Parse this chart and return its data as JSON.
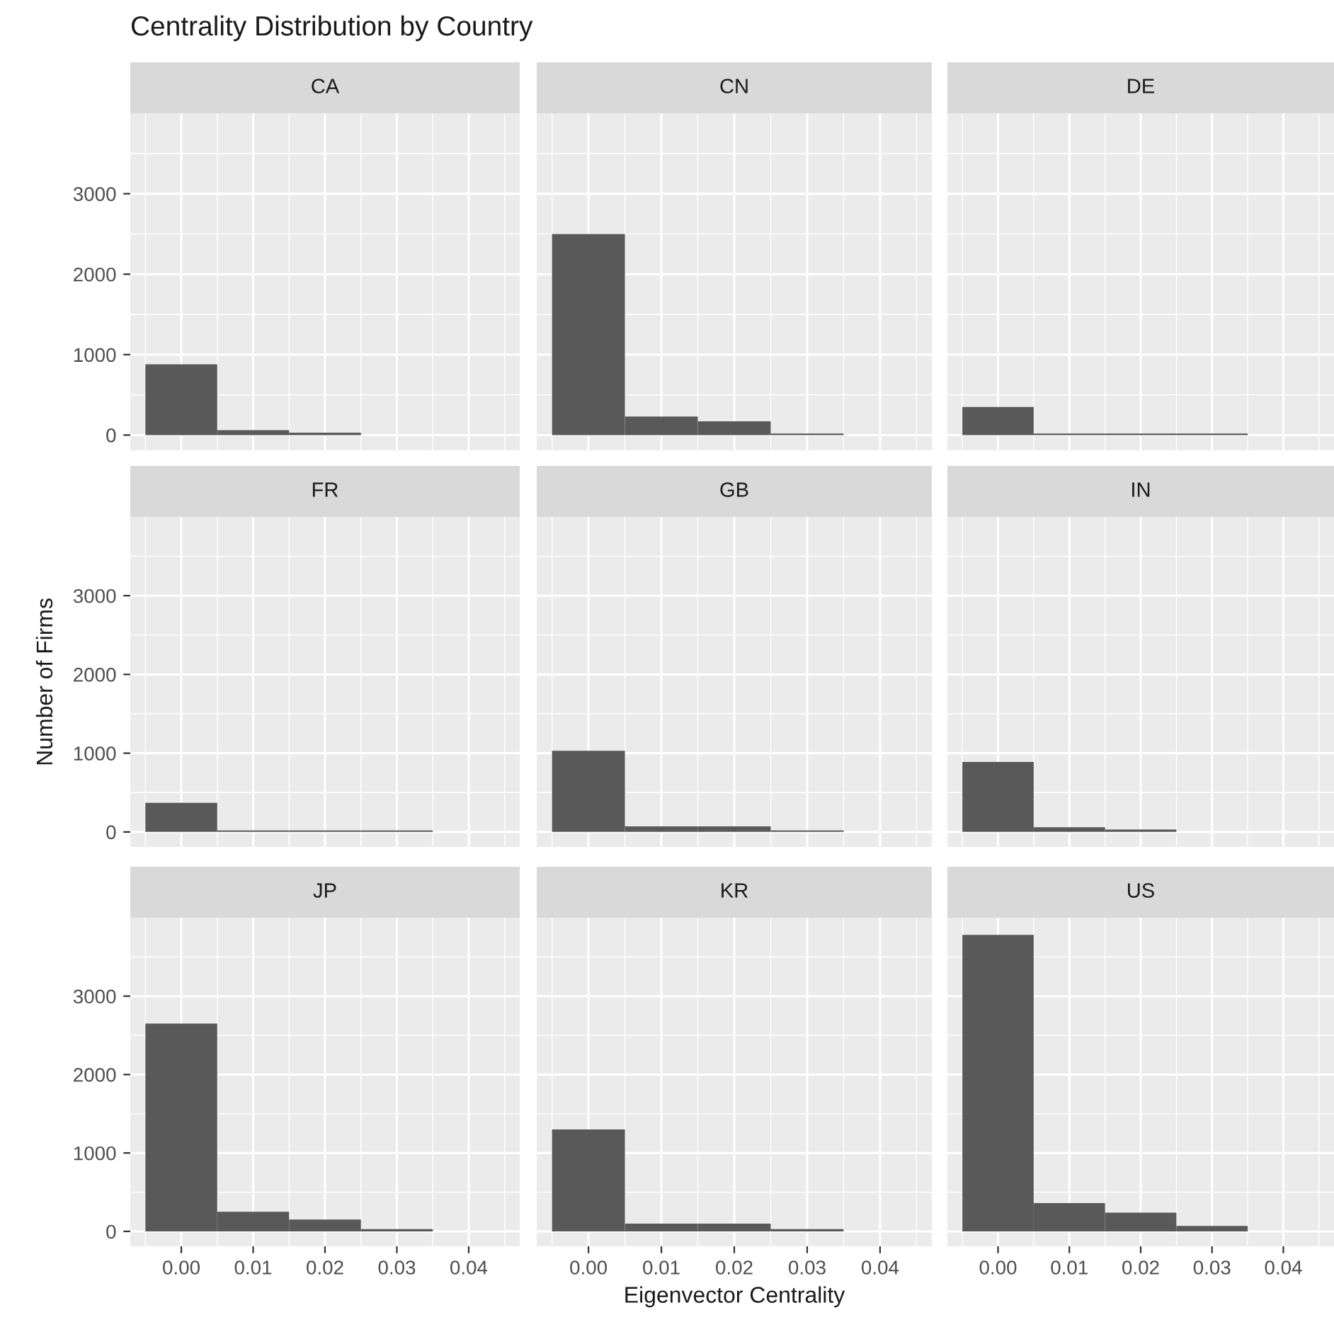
{
  "chart_data": [
    {
      "type": "histogram",
      "title": "Centrality Distribution by Country",
      "subtitle": "CA",
      "bins": [
        -0.005,
        0.005,
        0.015,
        0.025,
        0.035
      ],
      "values": [
        880,
        60,
        30,
        0
      ],
      "color": "#595959",
      "xlim": [
        -0.0071,
        0.0471
      ],
      "ylim": [
        -190,
        4000
      ],
      "xticks": [
        {
          "value": 0,
          "label": null
        },
        {
          "value": 0.01,
          "label": null
        },
        {
          "value": 0.02,
          "label": null
        },
        {
          "value": 0.03,
          "label": null
        },
        {
          "value": 0.04,
          "label": null
        }
      ],
      "yticks": [
        0,
        1000,
        2000,
        3000
      ],
      "grid": true,
      "tick_labels": "y"
    },
    {
      "type": "histogram",
      "subtitle": "CN",
      "bins": [
        -0.005,
        0.005,
        0.015,
        0.025,
        0.035
      ],
      "values": [
        2500,
        230,
        170,
        20
      ],
      "color": "#595959",
      "xlim": [
        -0.0071,
        0.0471
      ],
      "ylim": [
        -190,
        4000
      ],
      "xticks": [
        {
          "value": 0,
          "label": null
        },
        {
          "value": 0.01,
          "label": null
        },
        {
          "value": 0.02,
          "label": null
        },
        {
          "value": 0.03,
          "label": null
        },
        {
          "value": 0.04,
          "label": null
        }
      ],
      "yticks": [
        {
          "value": 0,
          "label": null
        },
        {
          "value": 1000,
          "label": null
        },
        {
          "value": 2000,
          "label": null
        },
        {
          "value": 3000,
          "label": null
        }
      ],
      "grid": true,
      "tick_labels": false
    },
    {
      "type": "histogram",
      "subtitle": "DE",
      "bins": [
        -0.005,
        0.005,
        0.015,
        0.025,
        0.035
      ],
      "values": [
        350,
        20,
        20,
        20
      ],
      "color": "#595959",
      "xlim": [
        -0.0071,
        0.0471
      ],
      "ylim": [
        -190,
        4000
      ],
      "xticks": [
        {
          "value": 0,
          "label": null
        },
        {
          "value": 0.01,
          "label": null
        },
        {
          "value": 0.02,
          "label": null
        },
        {
          "value": 0.03,
          "label": null
        },
        {
          "value": 0.04,
          "label": null
        }
      ],
      "yticks": [
        {
          "value": 0,
          "label": null
        },
        {
          "value": 1000,
          "label": null
        },
        {
          "value": 2000,
          "label": null
        },
        {
          "value": 3000,
          "label": null
        }
      ],
      "grid": true,
      "tick_labels": false
    },
    {
      "type": "histogram",
      "subtitle": "FR",
      "ylabel": "Number of Firms",
      "bins": [
        -0.005,
        0.005,
        0.015,
        0.025,
        0.035
      ],
      "values": [
        370,
        20,
        20,
        20
      ],
      "color": "#595959",
      "xlim": [
        -0.0071,
        0.0471
      ],
      "ylim": [
        -190,
        4000
      ],
      "xticks": [
        {
          "value": 0,
          "label": null
        },
        {
          "value": 0.01,
          "label": null
        },
        {
          "value": 0.02,
          "label": null
        },
        {
          "value": 0.03,
          "label": null
        },
        {
          "value": 0.04,
          "label": null
        }
      ],
      "yticks": [
        0,
        1000,
        2000,
        3000
      ],
      "grid": true,
      "tick_labels": "y"
    },
    {
      "type": "histogram",
      "subtitle": "GB",
      "bins": [
        -0.005,
        0.005,
        0.015,
        0.025,
        0.035
      ],
      "values": [
        1030,
        70,
        70,
        20
      ],
      "color": "#595959",
      "xlim": [
        -0.0071,
        0.0471
      ],
      "ylim": [
        -190,
        4000
      ],
      "xticks": [
        {
          "value": 0,
          "label": null
        },
        {
          "value": 0.01,
          "label": null
        },
        {
          "value": 0.02,
          "label": null
        },
        {
          "value": 0.03,
          "label": null
        },
        {
          "value": 0.04,
          "label": null
        }
      ],
      "yticks": [
        {
          "value": 0,
          "label": null
        },
        {
          "value": 1000,
          "label": null
        },
        {
          "value": 2000,
          "label": null
        },
        {
          "value": 3000,
          "label": null
        }
      ],
      "grid": true,
      "tick_labels": false
    },
    {
      "type": "histogram",
      "subtitle": "IN",
      "bins": [
        -0.005,
        0.005,
        0.015,
        0.025,
        0.035
      ],
      "values": [
        890,
        60,
        30,
        0
      ],
      "color": "#595959",
      "xlim": [
        -0.0071,
        0.0471
      ],
      "ylim": [
        -190,
        4000
      ],
      "xticks": [
        {
          "value": 0,
          "label": null
        },
        {
          "value": 0.01,
          "label": null
        },
        {
          "value": 0.02,
          "label": null
        },
        {
          "value": 0.03,
          "label": null
        },
        {
          "value": 0.04,
          "label": null
        }
      ],
      "yticks": [
        {
          "value": 0,
          "label": null
        },
        {
          "value": 1000,
          "label": null
        },
        {
          "value": 2000,
          "label": null
        },
        {
          "value": 3000,
          "label": null
        }
      ],
      "grid": true,
      "tick_labels": false
    },
    {
      "type": "histogram",
      "subtitle": "JP",
      "bins": [
        -0.005,
        0.005,
        0.015,
        0.025,
        0.035
      ],
      "values": [
        2650,
        250,
        150,
        30
      ],
      "color": "#595959",
      "xlim": [
        -0.0071,
        0.0471
      ],
      "ylim": [
        -190,
        4000
      ],
      "xticks": [
        {
          "value": 0,
          "label": "0.00"
        },
        {
          "value": 0.01,
          "label": "0.01"
        },
        {
          "value": 0.02,
          "label": "0.02"
        },
        {
          "value": 0.03,
          "label": "0.03"
        },
        {
          "value": 0.04,
          "label": "0.04"
        }
      ],
      "yticks": [
        0,
        1000,
        2000,
        3000
      ],
      "grid": true
    },
    {
      "type": "histogram",
      "subtitle": "KR",
      "xlabel": "Eigenvector Centrality",
      "bins": [
        -0.005,
        0.005,
        0.015,
        0.025,
        0.035
      ],
      "values": [
        1300,
        100,
        100,
        30
      ],
      "color": "#595959",
      "xlim": [
        -0.0071,
        0.0471
      ],
      "ylim": [
        -190,
        4000
      ],
      "xticks": [
        {
          "value": 0,
          "label": "0.00"
        },
        {
          "value": 0.01,
          "label": "0.01"
        },
        {
          "value": 0.02,
          "label": "0.02"
        },
        {
          "value": 0.03,
          "label": "0.03"
        },
        {
          "value": 0.04,
          "label": "0.04"
        }
      ],
      "yticks": [
        {
          "value": 0,
          "label": null
        },
        {
          "value": 1000,
          "label": null
        },
        {
          "value": 2000,
          "label": null
        },
        {
          "value": 3000,
          "label": null
        }
      ],
      "grid": true,
      "tick_labels": "x"
    },
    {
      "type": "histogram",
      "subtitle": "US",
      "bins": [
        -0.005,
        0.005,
        0.015,
        0.025,
        0.035
      ],
      "values": [
        3780,
        360,
        240,
        70
      ],
      "color": "#595959",
      "xlim": [
        -0.0071,
        0.0471
      ],
      "ylim": [
        -190,
        4000
      ],
      "xticks": [
        {
          "value": 0,
          "label": "0.00"
        },
        {
          "value": 0.01,
          "label": "0.01"
        },
        {
          "value": 0.02,
          "label": "0.02"
        },
        {
          "value": 0.03,
          "label": "0.03"
        },
        {
          "value": 0.04,
          "label": "0.04"
        }
      ],
      "yticks": [
        {
          "value": 0,
          "label": null
        },
        {
          "value": 1000,
          "label": null
        },
        {
          "value": 2000,
          "label": null
        },
        {
          "value": 3000,
          "label": null
        }
      ],
      "grid": true,
      "tick_labels": "x"
    }
  ]
}
